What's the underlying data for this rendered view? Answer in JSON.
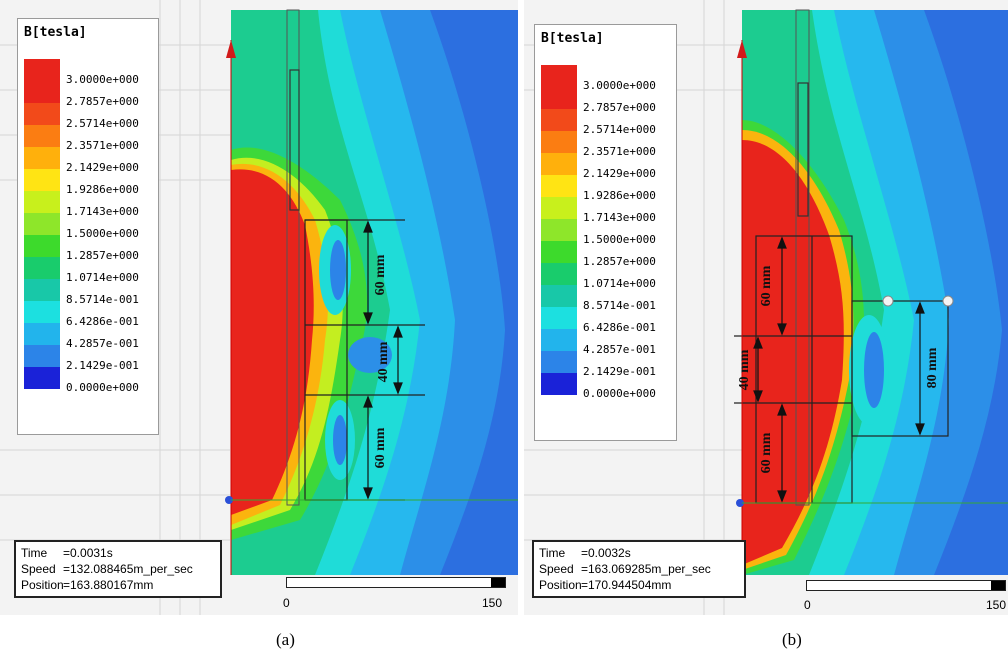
{
  "figure": {
    "panels": [
      {
        "legend_title": "B[tesla]",
        "legend_values": [
          "3.0000e+000",
          "2.7857e+000",
          "2.5714e+000",
          "2.3571e+000",
          "2.1429e+000",
          "1.9286e+000",
          "1.7143e+000",
          "1.5000e+000",
          "1.2857e+000",
          "1.0714e+000",
          "8.5714e-001",
          "6.4286e-001",
          "4.2857e-001",
          "2.1429e-001",
          "0.0000e+000"
        ],
        "legend_colors": [
          "#e8241c",
          "#f24a1a",
          "#fb7d12",
          "#ffb00c",
          "#ffe414",
          "#c8f01c",
          "#8ee62a",
          "#3dda2c",
          "#19cc6c",
          "#18c8a8",
          "#1ce0e0",
          "#22b4ec",
          "#2c84e8",
          "#2a4fd8",
          "#1a22d8"
        ],
        "info": {
          "time_label": "Time",
          "time_value": "=0.0031s",
          "speed_label": "Speed",
          "speed_value": "=132.088465m_per_sec",
          "position_label": "Position",
          "position_value": "=163.880167mm"
        },
        "scale": {
          "start": "0",
          "end": "150"
        },
        "dimensions": [
          "60 mm",
          "40 mm",
          "60 mm"
        ],
        "caption": "(a)"
      },
      {
        "legend_title": "B[tesla]",
        "legend_values": [
          "3.0000e+000",
          "2.7857e+000",
          "2.5714e+000",
          "2.3571e+000",
          "2.1429e+000",
          "1.9286e+000",
          "1.7143e+000",
          "1.5000e+000",
          "1.2857e+000",
          "1.0714e+000",
          "8.5714e-001",
          "6.4286e-001",
          "4.2857e-001",
          "2.1429e-001",
          "0.0000e+000"
        ],
        "legend_colors": [
          "#e8241c",
          "#f24a1a",
          "#fb7d12",
          "#ffb00c",
          "#ffe414",
          "#c8f01c",
          "#8ee62a",
          "#3dda2c",
          "#19cc6c",
          "#18c8a8",
          "#1ce0e0",
          "#22b4ec",
          "#2c84e8",
          "#2a4fd8",
          "#1a22d8"
        ],
        "info": {
          "time_label": "Time",
          "time_value": "=0.0032s",
          "speed_label": "Speed",
          "speed_value": "=163.069285m_per_sec",
          "position_label": "Position",
          "position_value": "=170.944504mm"
        },
        "scale": {
          "start": "0",
          "end": "150"
        },
        "dimensions": [
          "60 mm",
          "40 mm",
          "60 mm",
          "80 mm"
        ],
        "caption": "(b)"
      }
    ]
  }
}
